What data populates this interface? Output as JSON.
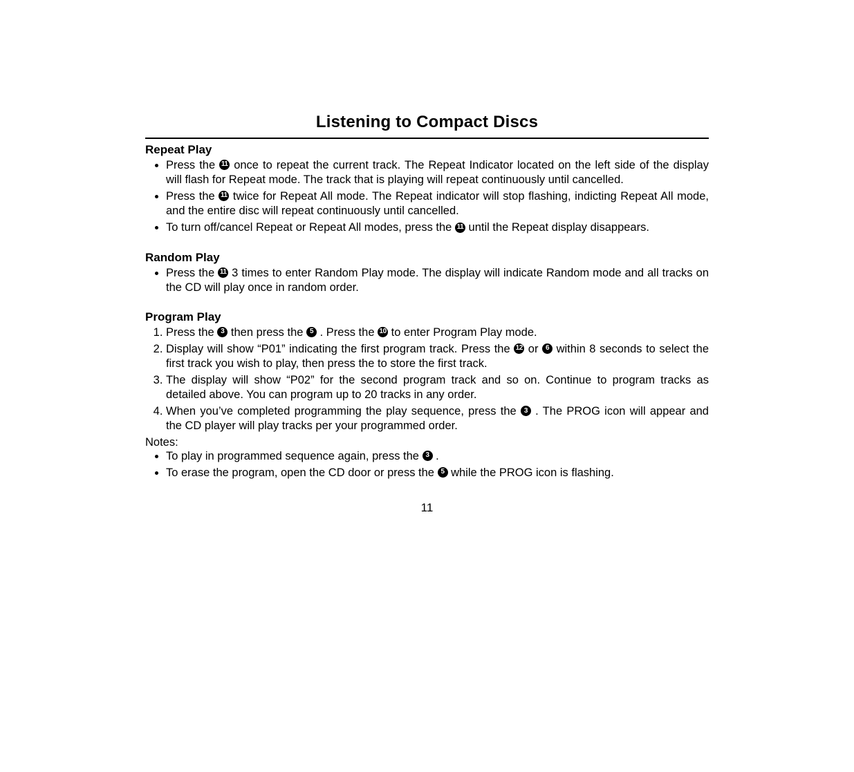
{
  "title": "Listening to Compact Discs",
  "page_number": "11",
  "icons": {
    "n3": "3",
    "n5": "5",
    "n6": "6",
    "n10": "10",
    "n11": "11",
    "n12": "12"
  },
  "sections": {
    "repeat": {
      "heading": "Repeat Play",
      "items": [
        {
          "pre": "Press the ",
          "icon": "n11",
          "mid": "                            once to repeat the current track. The Repeat Indicator located on the left side of the display will flash for Repeat mode. The track that is playing will repeat continuously until cancelled."
        },
        {
          "pre": "Press the ",
          "icon": "n11",
          "mid": "                            twice for Repeat All mode. The Repeat indicator will stop flashing, indicting Repeat All mode, and the entire disc will repeat continuously until cancelled."
        },
        {
          "pre": "To turn off/cancel Repeat or Repeat All modes, press the ",
          "icon": "n11",
          "mid": "                             until the Repeat display disappears."
        }
      ]
    },
    "random": {
      "heading": "Random Play",
      "items": [
        {
          "pre": "Press the ",
          "icon": "n11",
          "mid": "                            3 times to enter Random Play mode. The display will indicate Random mode and all tracks on the CD will play once in random order."
        }
      ]
    },
    "program": {
      "heading": "Program Play",
      "steps": {
        "s1": {
          "a": "Press the ",
          "b": "                             then press the ",
          "c": "                   . Press the ",
          "d": "                        to enter Program Play mode."
        },
        "s2": {
          "a": "Display will show “P01” indicating the first program track. Press the ",
          "b": "                        or ",
          "c": "            within 8 seconds to select the first track you wish to play, then press the                            to store the first track."
        },
        "s3": "The display will show “P02” for the second program track and so on. Continue to program tracks as detailed above. You can program up to 20 tracks in any order.",
        "s4": {
          "a": "When you’ve completed programming the play sequence, press the ",
          "b": "                           . The PROG icon will appear and the CD player will play tracks per your programmed order."
        }
      },
      "notes_label": "Notes:",
      "notes": {
        "n1": {
          "a": "To play in programmed sequence again, press the ",
          "b": "                           ."
        },
        "n2": {
          "a": "To erase the program, open the CD door or press the ",
          "b": "                    while the PROG icon is flashing."
        }
      }
    }
  }
}
